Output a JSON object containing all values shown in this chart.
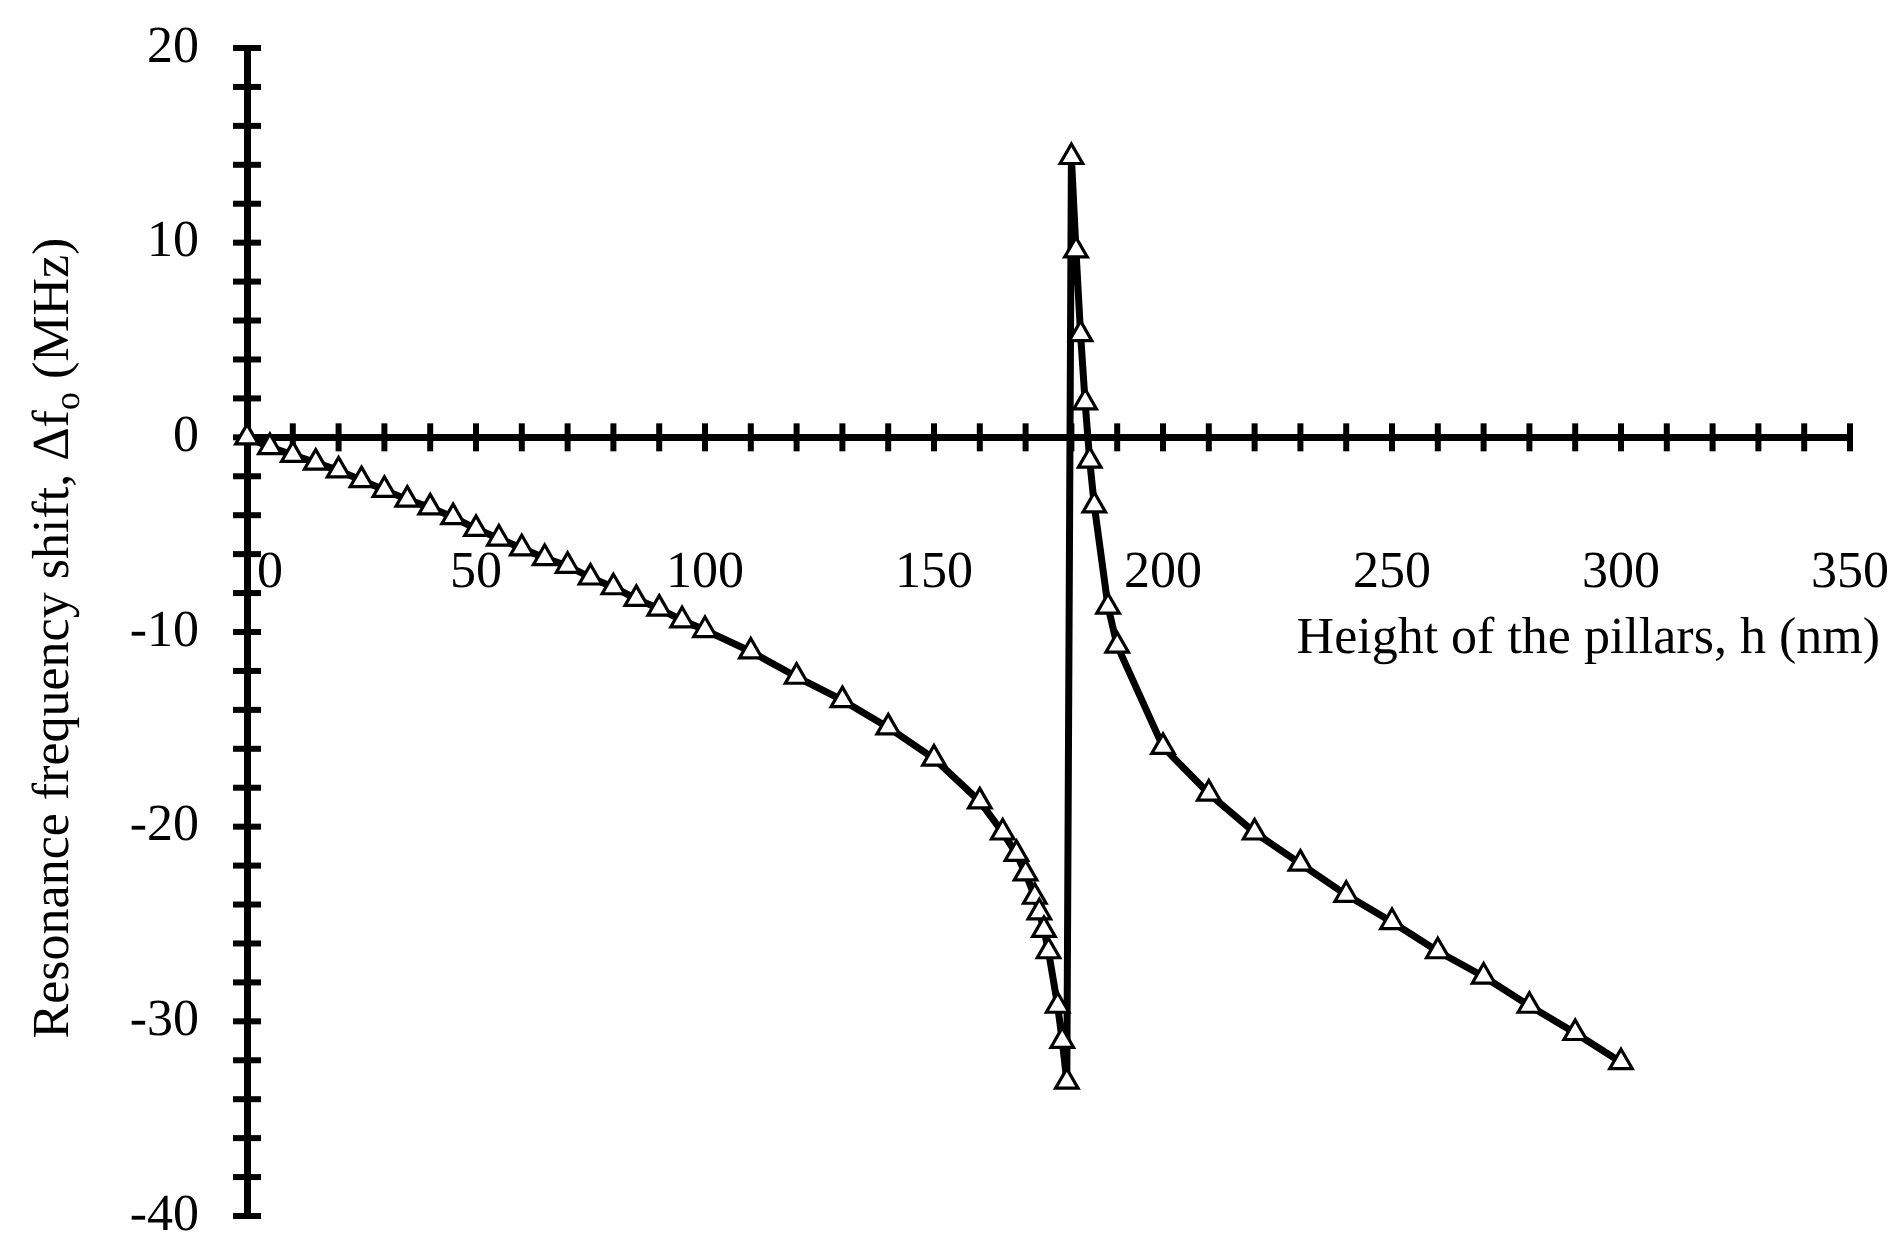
{
  "chart_data": {
    "type": "line",
    "xlabel": "Height of the pillars, h (nm)",
    "ylabel": "Resonance frequency shift, Δf$_{o}$ (MHz)",
    "x": [
      0,
      5,
      10,
      15,
      20,
      25,
      30,
      35,
      40,
      45,
      50,
      55,
      60,
      65,
      70,
      75,
      80,
      85,
      90,
      95,
      100,
      110,
      120,
      130,
      140,
      150,
      160,
      165,
      168,
      170,
      172,
      173,
      174,
      175,
      177,
      178,
      179,
      180,
      181,
      182,
      183,
      184,
      185,
      188,
      190,
      200,
      210,
      220,
      230,
      240,
      250,
      260,
      270,
      280,
      290,
      300
    ],
    "series": [
      {
        "color": "#000000",
        "values": [
          0,
          -0.5,
          -0.9,
          -1.3,
          -1.7,
          -2.2,
          -2.7,
          -3.2,
          -3.6,
          -4.1,
          -4.7,
          -5.2,
          -5.7,
          -6.2,
          -6.6,
          -7.2,
          -7.7,
          -8.3,
          -8.8,
          -9.4,
          -9.9,
          -11.0,
          -12.3,
          -13.5,
          -14.9,
          -16.5,
          -18.7,
          -20.3,
          -21.4,
          -22.4,
          -23.6,
          -24.4,
          -25.3,
          -26.4,
          -29.2,
          -31.0,
          -33.1,
          14.4,
          9.6,
          5.3,
          1.8,
          -1.2,
          -3.5,
          -8.7,
          -10.7,
          -15.9,
          -18.3,
          -20.3,
          -21.9,
          -23.5,
          -24.9,
          -26.4,
          -27.7,
          -29.2,
          -30.6,
          -32.1
        ]
      }
    ],
    "xlim": [
      0,
      350
    ],
    "xticks": [
      0,
      {
        "value": 10,
        "label": null
      },
      {
        "value": 20,
        "label": null
      },
      {
        "value": 30,
        "label": null
      },
      {
        "value": 40,
        "label": null
      },
      50,
      {
        "value": 60,
        "label": null
      },
      {
        "value": 70,
        "label": null
      },
      {
        "value": 80,
        "label": null
      },
      {
        "value": 90,
        "label": null
      },
      100,
      {
        "value": 110,
        "label": null
      },
      {
        "value": 120,
        "label": null
      },
      {
        "value": 130,
        "label": null
      },
      {
        "value": 140,
        "label": null
      },
      150,
      {
        "value": 160,
        "label": null
      },
      {
        "value": 170,
        "label": null
      },
      {
        "value": 180,
        "label": null
      },
      {
        "value": 190,
        "label": null
      },
      200,
      {
        "value": 210,
        "label": null
      },
      {
        "value": 220,
        "label": null
      },
      {
        "value": 230,
        "label": null
      },
      {
        "value": 240,
        "label": null
      },
      250,
      {
        "value": 260,
        "label": null
      },
      {
        "value": 270,
        "label": null
      },
      {
        "value": 280,
        "label": null
      },
      {
        "value": 290,
        "label": null
      },
      300,
      {
        "value": 310,
        "label": null
      },
      {
        "value": 320,
        "label": null
      },
      {
        "value": 330,
        "label": null
      },
      {
        "value": 340,
        "label": null
      },
      350
    ],
    "ylim": [
      -40,
      20
    ],
    "yticks": [
      -40,
      {
        "value": -38,
        "label": null
      },
      {
        "value": -36,
        "label": null
      },
      {
        "value": -34,
        "label": null
      },
      {
        "value": -32,
        "label": null
      },
      -30,
      {
        "value": -28,
        "label": null
      },
      {
        "value": -26,
        "label": null
      },
      {
        "value": -24,
        "label": null
      },
      {
        "value": -22,
        "label": null
      },
      -20,
      {
        "value": -18,
        "label": null
      },
      {
        "value": -16,
        "label": null
      },
      {
        "value": -14,
        "label": null
      },
      {
        "value": -12,
        "label": null
      },
      -10,
      {
        "value": -8,
        "label": null
      },
      {
        "value": -6,
        "label": null
      },
      {
        "value": -4,
        "label": null
      },
      {
        "value": -2,
        "label": null
      },
      0,
      {
        "value": 2,
        "label": null
      },
      {
        "value": 4,
        "label": null
      },
      {
        "value": 6,
        "label": null
      },
      {
        "value": 8,
        "label": null
      },
      10,
      {
        "value": 12,
        "label": null
      },
      {
        "value": 14,
        "label": null
      },
      {
        "value": 16,
        "label": null
      },
      {
        "value": 18,
        "label": null
      },
      20
    ],
    "grid": false,
    "legend": false,
    "marker": "triangle",
    "line_style": "solid"
  }
}
